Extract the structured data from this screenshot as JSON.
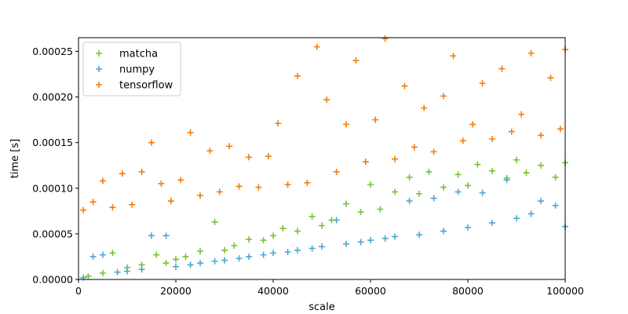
{
  "chart_data": {
    "type": "scatter",
    "marker": "plus",
    "xlabel": "scale",
    "ylabel": "time [s]",
    "xlim": [
      0,
      100000
    ],
    "ylim": [
      0,
      0.000265
    ],
    "x_ticks": [
      {
        "value": 0,
        "label": "0"
      },
      {
        "value": 20000,
        "label": "20000"
      },
      {
        "value": 40000,
        "label": "40000"
      },
      {
        "value": 60000,
        "label": "60000"
      },
      {
        "value": 80000,
        "label": "80000"
      },
      {
        "value": 100000,
        "label": "100000"
      }
    ],
    "y_ticks": [
      {
        "value": 0,
        "label": "0.00000"
      },
      {
        "value": 5e-05,
        "label": "0.00005"
      },
      {
        "value": 0.0001,
        "label": "0.00010"
      },
      {
        "value": 0.00015,
        "label": "0.00015"
      },
      {
        "value": 0.0002,
        "label": "0.00020"
      },
      {
        "value": 0.00025,
        "label": "0.00025"
      }
    ],
    "grid": false,
    "legend_position": "top-left",
    "series": [
      {
        "name": "matcha",
        "color": "#77c232",
        "points": [
          [
            2000,
            3.5e-06
          ],
          [
            5000,
            7e-06
          ],
          [
            7000,
            2.9e-05
          ],
          [
            10000,
            1.3e-05
          ],
          [
            13000,
            1.6e-05
          ],
          [
            16000,
            2.7e-05
          ],
          [
            18000,
            1.8e-05
          ],
          [
            20000,
            2.2e-05
          ],
          [
            22000,
            2.5e-05
          ],
          [
            25000,
            3.1e-05
          ],
          [
            28000,
            6.3e-05
          ],
          [
            30000,
            3.2e-05
          ],
          [
            32000,
            3.7e-05
          ],
          [
            35000,
            4.4e-05
          ],
          [
            38000,
            4.3e-05
          ],
          [
            40000,
            4.8e-05
          ],
          [
            42000,
            5.6e-05
          ],
          [
            45000,
            5.3e-05
          ],
          [
            48000,
            6.9e-05
          ],
          [
            50000,
            5.9e-05
          ],
          [
            52000,
            6.5e-05
          ],
          [
            55000,
            8.3e-05
          ],
          [
            58000,
            7.4e-05
          ],
          [
            60000,
            0.000104
          ],
          [
            62000,
            7.7e-05
          ],
          [
            65000,
            9.6e-05
          ],
          [
            68000,
            0.000112
          ],
          [
            70000,
            9.4e-05
          ],
          [
            72000,
            0.000118
          ],
          [
            75000,
            0.000101
          ],
          [
            78000,
            0.000115
          ],
          [
            80000,
            0.000103
          ],
          [
            82000,
            0.000126
          ],
          [
            85000,
            0.000119
          ],
          [
            88000,
            0.000111
          ],
          [
            90000,
            0.000131
          ],
          [
            92000,
            0.000117
          ],
          [
            95000,
            0.000125
          ],
          [
            98000,
            0.000112
          ],
          [
            100000,
            0.000128
          ]
        ]
      },
      {
        "name": "numpy",
        "color": "#4aa8d1",
        "points": [
          [
            1000,
            2e-06
          ],
          [
            3000,
            2.5e-05
          ],
          [
            5000,
            2.7e-05
          ],
          [
            8000,
            8e-06
          ],
          [
            10000,
            9e-06
          ],
          [
            13000,
            1.1e-05
          ],
          [
            15000,
            4.8e-05
          ],
          [
            18000,
            4.8e-05
          ],
          [
            20000,
            1.4e-05
          ],
          [
            23000,
            1.6e-05
          ],
          [
            25000,
            1.8e-05
          ],
          [
            28000,
            2e-05
          ],
          [
            30000,
            2.1e-05
          ],
          [
            33000,
            2.3e-05
          ],
          [
            35000,
            2.5e-05
          ],
          [
            38000,
            2.7e-05
          ],
          [
            40000,
            2.9e-05
          ],
          [
            43000,
            3e-05
          ],
          [
            45000,
            3.2e-05
          ],
          [
            48000,
            3.4e-05
          ],
          [
            50000,
            3.6e-05
          ],
          [
            53000,
            6.5e-05
          ],
          [
            55000,
            3.9e-05
          ],
          [
            58000,
            4.1e-05
          ],
          [
            60000,
            4.3e-05
          ],
          [
            63000,
            4.5e-05
          ],
          [
            65000,
            4.7e-05
          ],
          [
            68000,
            8.6e-05
          ],
          [
            70000,
            4.9e-05
          ],
          [
            73000,
            8.9e-05
          ],
          [
            75000,
            5.3e-05
          ],
          [
            78000,
            9.6e-05
          ],
          [
            80000,
            5.7e-05
          ],
          [
            83000,
            9.5e-05
          ],
          [
            85000,
            6.2e-05
          ],
          [
            88000,
            0.000109
          ],
          [
            90000,
            6.7e-05
          ],
          [
            93000,
            7.2e-05
          ],
          [
            95000,
            8.6e-05
          ],
          [
            98000,
            8.1e-05
          ],
          [
            100000,
            5.8e-05
          ]
        ]
      },
      {
        "name": "tensorflow",
        "color": "#f57c0c",
        "points": [
          [
            1000,
            7.6e-05
          ],
          [
            3000,
            8.5e-05
          ],
          [
            5000,
            0.000108
          ],
          [
            7000,
            7.9e-05
          ],
          [
            9000,
            0.000116
          ],
          [
            11000,
            8.2e-05
          ],
          [
            13000,
            0.000118
          ],
          [
            15000,
            0.00015
          ],
          [
            17000,
            0.000105
          ],
          [
            19000,
            8.6e-05
          ],
          [
            21000,
            0.000109
          ],
          [
            23000,
            0.000161
          ],
          [
            25000,
            9.2e-05
          ],
          [
            27000,
            0.000141
          ],
          [
            29000,
            9.6e-05
          ],
          [
            31000,
            0.000146
          ],
          [
            33000,
            0.000102
          ],
          [
            35000,
            0.000134
          ],
          [
            37000,
            0.000101
          ],
          [
            39000,
            0.000135
          ],
          [
            41000,
            0.000171
          ],
          [
            43000,
            0.000104
          ],
          [
            45000,
            0.000223
          ],
          [
            47000,
            0.000106
          ],
          [
            49000,
            0.000255
          ],
          [
            51000,
            0.000197
          ],
          [
            53000,
            0.000118
          ],
          [
            55000,
            0.00017
          ],
          [
            57000,
            0.00024
          ],
          [
            59000,
            0.000129
          ],
          [
            61000,
            0.000175
          ],
          [
            63000,
            0.000264
          ],
          [
            65000,
            0.000132
          ],
          [
            67000,
            0.000212
          ],
          [
            69000,
            0.000145
          ],
          [
            71000,
            0.000188
          ],
          [
            73000,
            0.00014
          ],
          [
            75000,
            0.000201
          ],
          [
            77000,
            0.000245
          ],
          [
            79000,
            0.000152
          ],
          [
            81000,
            0.00017
          ],
          [
            83000,
            0.000215
          ],
          [
            85000,
            0.000154
          ],
          [
            87000,
            0.000231
          ],
          [
            89000,
            0.000162
          ],
          [
            91000,
            0.000181
          ],
          [
            93000,
            0.000248
          ],
          [
            95000,
            0.000158
          ],
          [
            97000,
            0.000221
          ],
          [
            99000,
            0.000165
          ],
          [
            100000,
            0.000252
          ]
        ]
      }
    ]
  }
}
